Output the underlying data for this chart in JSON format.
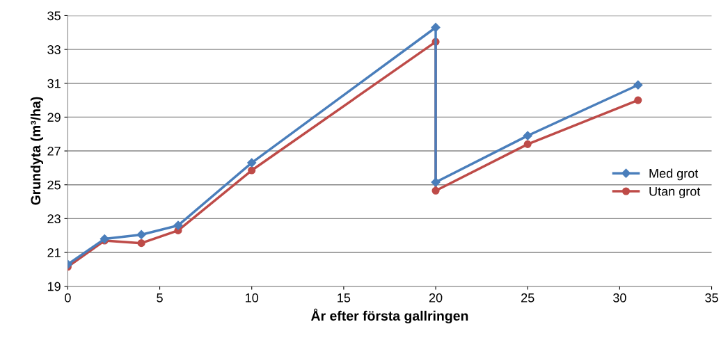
{
  "chart_data": {
    "type": "line",
    "xlabel": "År efter första gallringen",
    "ylabel": "Grundyta (m³/ha)",
    "x": [
      0,
      2,
      4,
      6,
      10,
      20,
      20,
      25,
      31
    ],
    "series": [
      {
        "name": "Med grot",
        "color": "#4a7ebb",
        "marker": "diamond",
        "values": [
          20.3,
          21.8,
          22.05,
          22.6,
          26.3,
          34.3,
          25.15,
          27.9,
          30.9
        ]
      },
      {
        "name": "Utan grot",
        "color": "#be4b48",
        "marker": "circle",
        "values": [
          20.15,
          21.7,
          21.55,
          22.3,
          25.85,
          33.45,
          24.65,
          27.4,
          30.0
        ]
      }
    ],
    "xlim": [
      0,
      35
    ],
    "xticks": [
      0,
      5,
      10,
      15,
      20,
      25,
      30,
      35
    ],
    "ylim": [
      19,
      35
    ],
    "yticks": [
      19,
      21,
      23,
      25,
      27,
      29,
      31,
      33,
      35
    ],
    "grid": "y",
    "legend": "right",
    "line_style": "solid"
  }
}
